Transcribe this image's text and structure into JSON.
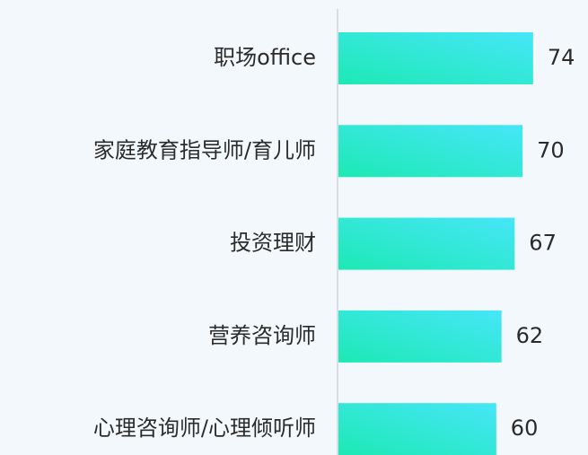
{
  "chart_data": {
    "type": "hbar",
    "categories": [
      "职场office",
      "家庭教育指导师/育儿师",
      "投资理财",
      "营养咨询师",
      "心理咨询师/心理倾听师"
    ],
    "values": [
      74,
      70,
      67,
      62,
      60
    ],
    "gradient": [
      "#1de9b4",
      "#46e6f8"
    ]
  }
}
